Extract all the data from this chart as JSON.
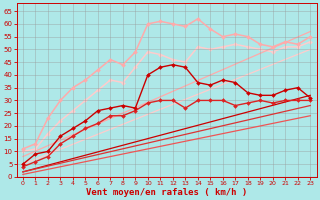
{
  "bg_color": "#aee8e8",
  "grid_color": "#999999",
  "xlabel": "Vent moyen/en rafales ( km/h )",
  "xlabel_color": "#cc0000",
  "xlabel_fontsize": 6.5,
  "ylim": [
    0,
    68
  ],
  "xlim": [
    -0.5,
    23.5
  ],
  "tick_color": "#cc0000",
  "lines": [
    {
      "x": [
        0,
        1,
        2,
        3,
        4,
        5,
        6,
        7,
        8,
        9,
        10,
        11,
        12,
        13,
        14,
        15,
        16,
        17,
        18,
        19,
        20,
        21,
        22,
        23
      ],
      "y": [
        5,
        9,
        10,
        16,
        19,
        22,
        26,
        27,
        28,
        27,
        40,
        43,
        44,
        43,
        37,
        36,
        38,
        37,
        33,
        32,
        32,
        34,
        35,
        31
      ],
      "color": "#cc0000",
      "lw": 1.0,
      "marker": "D",
      "ms": 2.0,
      "zorder": 5
    },
    {
      "x": [
        0,
        1,
        2,
        3,
        4,
        5,
        6,
        7,
        8,
        9,
        10,
        11,
        12,
        13,
        14,
        15,
        16,
        17,
        18,
        19,
        20,
        21,
        22,
        23
      ],
      "y": [
        4,
        6,
        8,
        13,
        16,
        19,
        21,
        24,
        24,
        26,
        29,
        30,
        30,
        27,
        30,
        30,
        30,
        28,
        29,
        30,
        29,
        30,
        30,
        30
      ],
      "color": "#dd2222",
      "lw": 1.0,
      "marker": "D",
      "ms": 2.0,
      "zorder": 4
    },
    {
      "x": [
        0,
        23
      ],
      "y": [
        2,
        32
      ],
      "color": "#cc0000",
      "lw": 0.9,
      "marker": null,
      "ms": 0,
      "zorder": 3
    },
    {
      "x": [
        0,
        23
      ],
      "y": [
        2,
        28
      ],
      "color": "#dd3333",
      "lw": 0.9,
      "marker": null,
      "ms": 0,
      "zorder": 3
    },
    {
      "x": [
        0,
        23
      ],
      "y": [
        1,
        24
      ],
      "color": "#ee5555",
      "lw": 0.9,
      "marker": null,
      "ms": 0,
      "zorder": 3
    },
    {
      "x": [
        0,
        1,
        2,
        3,
        4,
        5,
        6,
        7,
        8,
        9,
        10,
        11,
        12,
        13,
        14,
        15,
        16,
        17,
        18,
        19,
        20,
        21,
        22,
        23
      ],
      "y": [
        11,
        13,
        23,
        30,
        35,
        38,
        42,
        46,
        44,
        49,
        60,
        61,
        60,
        59,
        62,
        58,
        55,
        56,
        55,
        52,
        51,
        53,
        52,
        55
      ],
      "color": "#ffaaaa",
      "lw": 1.1,
      "marker": "D",
      "ms": 2.0,
      "zorder": 2
    },
    {
      "x": [
        0,
        1,
        2,
        3,
        4,
        5,
        6,
        7,
        8,
        9,
        10,
        11,
        12,
        13,
        14,
        15,
        16,
        17,
        18,
        19,
        20,
        21,
        22,
        23
      ],
      "y": [
        10,
        11,
        17,
        22,
        26,
        30,
        34,
        38,
        37,
        43,
        49,
        48,
        46,
        45,
        51,
        50,
        51,
        52,
        51,
        50,
        49,
        51,
        51,
        53
      ],
      "color": "#ffcccc",
      "lw": 1.1,
      "marker": "D",
      "ms": 2.0,
      "zorder": 1
    },
    {
      "x": [
        0,
        23
      ],
      "y": [
        8,
        57
      ],
      "color": "#ffaaaa",
      "lw": 0.9,
      "marker": null,
      "ms": 0,
      "zorder": 1
    },
    {
      "x": [
        0,
        23
      ],
      "y": [
        5,
        50
      ],
      "color": "#ffcccc",
      "lw": 0.9,
      "marker": null,
      "ms": 0,
      "zorder": 1
    }
  ],
  "yticks": [
    0,
    5,
    10,
    15,
    20,
    25,
    30,
    35,
    40,
    45,
    50,
    55,
    60,
    65
  ],
  "xticks": [
    0,
    1,
    2,
    3,
    4,
    5,
    6,
    7,
    8,
    9,
    10,
    11,
    12,
    13,
    14,
    15,
    16,
    17,
    18,
    19,
    20,
    21,
    22,
    23
  ]
}
